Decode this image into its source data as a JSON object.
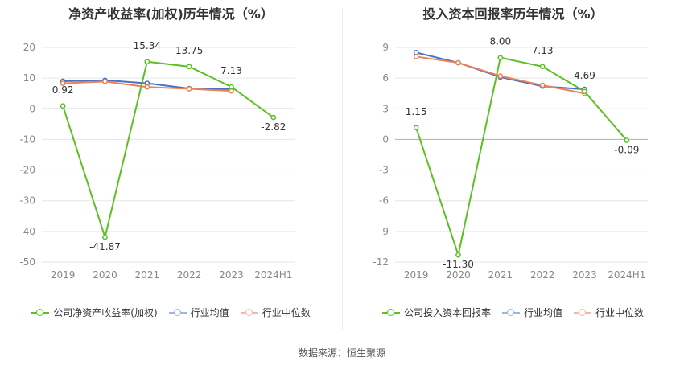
{
  "colors": {
    "company": "#5cc024",
    "industry_avg": "#4472c4",
    "industry_median": "#ee8055",
    "grid": "#e6e6e6",
    "axis_text": "#888888",
    "label_text": "#333333"
  },
  "source_text": "数据来源：恒生聚源",
  "chart_data": [
    {
      "type": "line",
      "title": "净资产收益率(加权)历年情况（%）",
      "categories": [
        "2019",
        "2020",
        "2021",
        "2022",
        "2023",
        "2024H1"
      ],
      "ylim": [
        -50,
        20
      ],
      "yticks": [
        20,
        10,
        0,
        -10,
        -20,
        -30,
        -40,
        -50
      ],
      "ytick_labels": [
        "20",
        "10",
        "0",
        "-10",
        "-20",
        "-30",
        "-40",
        "-50"
      ],
      "grid": true,
      "legend_position": "bottom",
      "series": [
        {
          "name": "公司净资产收益率(加权)",
          "values": [
            0.92,
            -41.87,
            15.34,
            13.75,
            7.13,
            -2.82
          ],
          "labels": [
            "0.92",
            "-41.87",
            "15.34",
            "13.75",
            "7.13",
            "-2.82"
          ],
          "color_key": "company"
        },
        {
          "name": "行业均值",
          "values": [
            9.0,
            9.3,
            8.3,
            6.6,
            6.4,
            null
          ],
          "labels": null,
          "color_key": "industry_avg"
        },
        {
          "name": "行业中位数",
          "values": [
            8.3,
            8.9,
            7.1,
            6.5,
            5.8,
            null
          ],
          "labels": null,
          "color_key": "industry_median"
        }
      ]
    },
    {
      "type": "line",
      "title": "投入资本回报率历年情况（%）",
      "categories": [
        "2019",
        "2020",
        "2021",
        "2022",
        "2023",
        "2024H1"
      ],
      "ylim": [
        -12,
        9
      ],
      "yticks": [
        9,
        6,
        3,
        0,
        -3,
        -6,
        -9,
        -12
      ],
      "ytick_labels": [
        "9",
        "6",
        "3",
        "0",
        "-3",
        "-6",
        "-9",
        "-12"
      ],
      "grid": true,
      "legend_position": "bottom",
      "series": [
        {
          "name": "公司投入资本回报率",
          "values": [
            1.15,
            -11.3,
            8.0,
            7.13,
            4.69,
            -0.09
          ],
          "labels": [
            "1.15",
            "-11.30",
            "8.00",
            "7.13",
            "4.69",
            "-0.09"
          ],
          "color_key": "company"
        },
        {
          "name": "行业均值",
          "values": [
            8.5,
            7.5,
            6.1,
            5.2,
            4.9,
            null
          ],
          "labels": null,
          "color_key": "industry_avg"
        },
        {
          "name": "行业中位数",
          "values": [
            8.1,
            7.5,
            6.2,
            5.3,
            4.5,
            null
          ],
          "labels": null,
          "color_key": "industry_median"
        }
      ]
    }
  ]
}
